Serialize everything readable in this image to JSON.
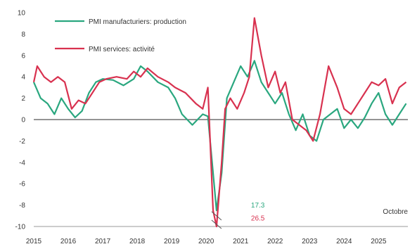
{
  "chart_data": {
    "type": "line",
    "y_ticks": [
      10,
      8,
      6,
      4,
      2,
      0,
      -2,
      -4,
      -6,
      -8,
      -10
    ],
    "x_ticks": [
      2015,
      2016,
      2017,
      2018,
      2019,
      2020,
      2021,
      2022,
      2023,
      2024,
      2025
    ],
    "ylim": [
      -10,
      10
    ],
    "xlim": [
      2015,
      2025.85
    ],
    "grid": false,
    "zero_line": true,
    "legend_position": "top-left",
    "series": [
      {
        "name": "PMI manufacturiers: production",
        "color": "#2aa77f",
        "x": [
          2015.0,
          2015.2,
          2015.4,
          2015.6,
          2015.8,
          2016.0,
          2016.2,
          2016.4,
          2016.6,
          2016.8,
          2017.0,
          2017.3,
          2017.6,
          2017.9,
          2018.1,
          2018.3,
          2018.6,
          2018.9,
          2019.1,
          2019.3,
          2019.6,
          2019.9,
          2020.05,
          2020.2,
          2020.3,
          2020.45,
          2020.6,
          2020.8,
          2021.0,
          2021.2,
          2021.4,
          2021.6,
          2021.8,
          2022.0,
          2022.2,
          2022.4,
          2022.6,
          2022.8,
          2023.0,
          2023.2,
          2023.4,
          2023.6,
          2023.8,
          2024.0,
          2024.2,
          2024.4,
          2024.6,
          2024.8,
          2025.0,
          2025.2,
          2025.4,
          2025.6,
          2025.8
        ],
        "y": [
          3.5,
          2.0,
          1.5,
          0.5,
          2.0,
          1.0,
          0.2,
          0.8,
          2.5,
          3.5,
          3.8,
          3.7,
          3.2,
          3.8,
          5.0,
          4.5,
          3.5,
          3.0,
          2.0,
          0.5,
          -0.5,
          0.5,
          0.3,
          -5.0,
          -8.5,
          -5.0,
          2.0,
          3.5,
          5.0,
          4.0,
          5.5,
          3.5,
          2.5,
          1.5,
          2.5,
          0.5,
          -1.0,
          0.5,
          -1.5,
          -2.0,
          0.0,
          0.5,
          1.0,
          -0.8,
          0.0,
          -0.8,
          0.2,
          1.5,
          2.5,
          0.5,
          -0.5,
          0.5,
          1.5
        ]
      },
      {
        "name": "PMI services: activité",
        "color": "#d8314f",
        "x": [
          2015.0,
          2015.1,
          2015.3,
          2015.5,
          2015.7,
          2015.9,
          2016.1,
          2016.3,
          2016.5,
          2016.7,
          2016.9,
          2017.1,
          2017.4,
          2017.7,
          2017.9,
          2018.1,
          2018.3,
          2018.6,
          2018.9,
          2019.1,
          2019.4,
          2019.7,
          2019.9,
          2020.05,
          2020.2,
          2020.3,
          2020.45,
          2020.55,
          2020.7,
          2020.9,
          2021.1,
          2021.25,
          2021.4,
          2021.6,
          2021.8,
          2022.0,
          2022.15,
          2022.3,
          2022.5,
          2022.7,
          2022.9,
          2023.1,
          2023.3,
          2023.55,
          2023.8,
          2024.0,
          2024.2,
          2024.4,
          2024.6,
          2024.8,
          2025.0,
          2025.2,
          2025.4,
          2025.6,
          2025.8
        ],
        "y": [
          3.5,
          5.0,
          4.0,
          3.5,
          4.0,
          3.5,
          1.0,
          1.8,
          1.5,
          2.5,
          3.5,
          3.8,
          4.0,
          3.8,
          4.5,
          4.0,
          4.8,
          4.0,
          3.5,
          3.0,
          2.5,
          1.5,
          1.0,
          3.0,
          -8.5,
          -10.0,
          -4.0,
          1.0,
          2.0,
          1.0,
          2.5,
          4.0,
          9.5,
          6.0,
          3.0,
          4.5,
          2.5,
          3.5,
          0.0,
          -0.5,
          -1.0,
          -2.0,
          0.5,
          5.0,
          3.0,
          1.0,
          0.5,
          1.5,
          2.5,
          3.5,
          3.2,
          3.8,
          1.5,
          3.0,
          3.5
        ]
      }
    ],
    "annotations": [
      {
        "text": "17.3",
        "color": "#2aa77f",
        "x": 2021.3,
        "y": -8.0
      },
      {
        "text": "26.5",
        "color": "#d8314f",
        "x": 2021.3,
        "y": -9.2
      },
      {
        "text": "Octobre",
        "color": "#333333",
        "x": 2025.85,
        "y": -8.6
      }
    ]
  }
}
